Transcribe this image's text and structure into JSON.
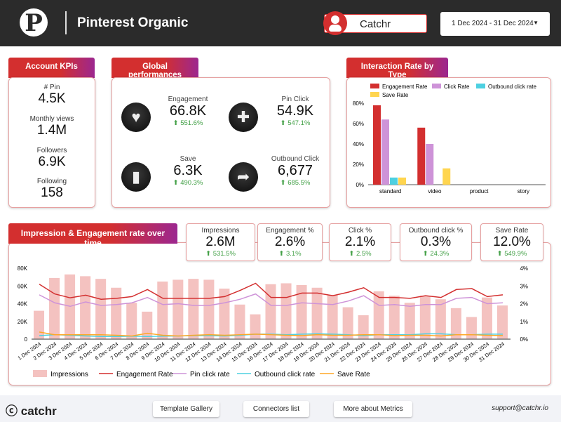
{
  "header": {
    "title": "Pinterest Organic",
    "account": "Catchr",
    "date_range": "1 Dec 2024 - 31 Dec 2024",
    "logo_letter": "P"
  },
  "account_kpis": {
    "title": "Account KPIs",
    "items": [
      {
        "label": "# Pin",
        "value": "4.5K"
      },
      {
        "label": "Monthly views",
        "value": "1.4M"
      },
      {
        "label": "Followers",
        "value": "6.9K"
      },
      {
        "label": "Following",
        "value": "158"
      }
    ]
  },
  "global": {
    "title": "Global performances",
    "items": [
      {
        "label": "Engagement",
        "value": "66.8K",
        "delta": "551.6%",
        "icon": "heart-icon"
      },
      {
        "label": "Pin Click",
        "value": "54.9K",
        "delta": "547.1%",
        "icon": "plus-icon"
      },
      {
        "label": "Save",
        "value": "6.3K",
        "delta": "490.3%",
        "icon": "bookmark-icon"
      },
      {
        "label": "Outbound Click",
        "value": "6,677",
        "delta": "685.5%",
        "icon": "share-arrow-icon"
      }
    ]
  },
  "metrics": [
    {
      "label": "Impressions",
      "value": "2.6M",
      "delta": "531.5%"
    },
    {
      "label": "Engagement %",
      "value": "2.6%",
      "delta": "3.1%"
    },
    {
      "label": "Click %",
      "value": "2.1%",
      "delta": "2.5%"
    },
    {
      "label": "Outbound click %",
      "value": "0.3%",
      "delta": "24.3%"
    },
    {
      "label": "Save Rate",
      "value": "12.0%",
      "delta": "549.9%"
    }
  ],
  "chart_data": [
    {
      "type": "bar",
      "title": "Interaction Rate by Type",
      "categories": [
        "standard",
        "video",
        "product",
        "story"
      ],
      "ylim": [
        0,
        80
      ],
      "yticks": [
        "0%",
        "20%",
        "40%",
        "60%",
        "80%"
      ],
      "legend": "top",
      "series": [
        {
          "name": "Engagement Rate",
          "color": "#d32f2f",
          "values": [
            78,
            56,
            0,
            0
          ]
        },
        {
          "name": "Click Rate",
          "color": "#ce93d8",
          "values": [
            64,
            40,
            0,
            0
          ]
        },
        {
          "name": "Outbound click rate",
          "color": "#4dd0e1",
          "values": [
            7,
            0,
            0,
            0
          ]
        },
        {
          "name": "Save Rate",
          "color": "#ffd54f",
          "values": [
            7,
            16,
            0,
            0
          ]
        }
      ]
    },
    {
      "type": "bar+line",
      "title": "Impression & Engagement rate over time",
      "legend": "bottom",
      "categories": [
        "1 Dec 2024",
        "2 Dec 2024",
        "3 Dec 2024",
        "4 Dec 2024",
        "5 Dec 2024",
        "6 Dec 2024",
        "7 Dec 2024",
        "8 Dec 2024",
        "9 Dec 2024",
        "10 Dec 2024",
        "11 Dec 2024",
        "12 Dec 2024",
        "13 Dec 2024",
        "14 Dec 2024",
        "15 Dec 2024",
        "16 Dec 2024",
        "17 Dec 2024",
        "18 Dec 2024",
        "19 Dec 2024",
        "20 Dec 2024",
        "21 Dec 2024",
        "22 Dec 2024",
        "23 Dec 2024",
        "24 Dec 2024",
        "25 Dec 2024",
        "26 Dec 2024",
        "27 Dec 2024",
        "28 Dec 2024",
        "29 Dec 2024",
        "30 Dec 2024",
        "31 Dec 2024"
      ],
      "ylim_left": [
        0,
        80000
      ],
      "yticks_left": [
        "0",
        "20K",
        "40K",
        "60K",
        "80K"
      ],
      "ylim_right": [
        0,
        4
      ],
      "yticks_right": [
        "0%",
        "1%",
        "2%",
        "3%",
        "4%"
      ],
      "series": [
        {
          "name": "Impressions",
          "type": "bar",
          "axis": "left",
          "color": "#f4c2c0",
          "values": [
            32000,
            69000,
            73000,
            71000,
            68000,
            58000,
            41000,
            31000,
            65000,
            67000,
            68000,
            67000,
            57000,
            39000,
            28000,
            62000,
            63000,
            61000,
            58000,
            50000,
            36000,
            27000,
            54000,
            49000,
            41000,
            49000,
            45000,
            35000,
            25000,
            47000,
            38000
          ]
        },
        {
          "name": "Engagement Rate",
          "type": "line",
          "axis": "right",
          "color": "#d32f2f",
          "values": [
            3.1,
            2.55,
            2.33,
            2.48,
            2.25,
            2.3,
            2.4,
            2.8,
            2.3,
            2.3,
            2.3,
            2.3,
            2.4,
            2.75,
            3.15,
            2.35,
            2.35,
            2.6,
            2.6,
            2.45,
            2.65,
            2.9,
            2.35,
            2.35,
            2.3,
            2.45,
            2.35,
            2.8,
            2.85,
            2.4,
            2.5
          ]
        },
        {
          "name": "Pin click rate",
          "type": "line",
          "axis": "right",
          "color": "#ce93d8",
          "values": [
            2.5,
            2.05,
            1.85,
            2.1,
            1.9,
            1.95,
            2.05,
            2.35,
            1.95,
            2.0,
            1.9,
            1.9,
            2.05,
            2.25,
            2.55,
            1.9,
            1.9,
            2.05,
            2.0,
            1.95,
            2.15,
            2.45,
            1.9,
            1.95,
            1.85,
            1.95,
            1.95,
            2.3,
            2.35,
            2.0,
            2.05
          ]
        },
        {
          "name": "Outbound click rate",
          "type": "line",
          "axis": "right",
          "color": "#4dd0e1",
          "values": [
            0.2,
            0.25,
            0.22,
            0.18,
            0.15,
            0.15,
            0.17,
            0.15,
            0.17,
            0.18,
            0.2,
            0.2,
            0.18,
            0.22,
            0.28,
            0.28,
            0.25,
            0.28,
            0.3,
            0.28,
            0.25,
            0.2,
            0.25,
            0.25,
            0.25,
            0.3,
            0.3,
            0.25,
            0.25,
            0.28,
            0.28
          ]
        },
        {
          "name": "Save Rate",
          "type": "line",
          "axis": "right",
          "color": "#ffa726",
          "values": [
            0.4,
            0.25,
            0.25,
            0.25,
            0.25,
            0.22,
            0.18,
            0.33,
            0.22,
            0.18,
            0.22,
            0.25,
            0.22,
            0.25,
            0.28,
            0.25,
            0.22,
            0.2,
            0.25,
            0.22,
            0.22,
            0.25,
            0.25,
            0.2,
            0.22,
            0.22,
            0.18,
            0.25,
            0.25,
            0.22,
            0.2
          ]
        }
      ]
    }
  ],
  "footer": {
    "brand": "catchr",
    "buttons": [
      "Template Gallery",
      "Connectors list",
      "More about Metrics"
    ],
    "email": "support@catchr.io"
  }
}
